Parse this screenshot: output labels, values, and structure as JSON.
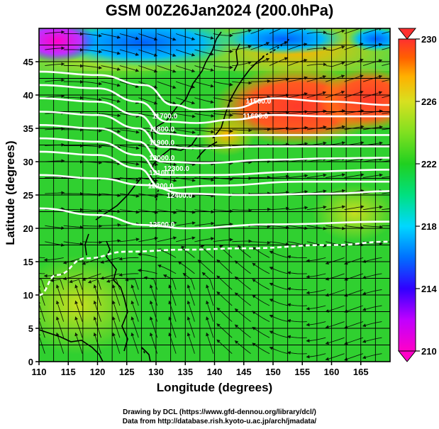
{
  "title": "GSM 00Z26Jan2024 (200.0hPa)",
  "xlabel": "Longitude (degrees)",
  "ylabel": "Latitude  (degrees)",
  "credits": [
    "Drawing by DCL (https://www.gfd-dennou.org/library/dcl/)",
    "Data from http://database.rish.kyoto-u.ac.jp/arch/jmadata/"
  ],
  "map": {
    "lon_range": [
      110,
      170
    ],
    "lat_range": [
      0,
      50
    ],
    "lon_ticks": [
      110,
      115,
      120,
      125,
      130,
      135,
      140,
      145,
      150,
      155,
      160,
      165
    ],
    "lat_ticks": [
      0,
      5,
      10,
      15,
      20,
      25,
      30,
      35,
      40,
      45
    ],
    "grid_step_deg": 2.5,
    "grid": true
  },
  "colorbar": {
    "ticks": [
      210,
      214,
      218,
      222,
      226,
      230
    ],
    "range": [
      210,
      230
    ],
    "colors": [
      "#ff00c8",
      "#c000ff",
      "#3000ff",
      "#0070ff",
      "#00d8ff",
      "#00e080",
      "#20d020",
      "#80e020",
      "#d8e020",
      "#ffb000",
      "#ff6000",
      "#ff3030"
    ]
  },
  "contour_labels": [
    {
      "text": "11500.0",
      "lon": 147.5,
      "lat": 38.7
    },
    {
      "text": "11600.0",
      "lon": 147.0,
      "lat": 36.5
    },
    {
      "text": "11700.0",
      "lon": 131.5,
      "lat": 36.5
    },
    {
      "text": "11800.0",
      "lon": 131.0,
      "lat": 34.5
    },
    {
      "text": "11900.0",
      "lon": 131.0,
      "lat": 32.5
    },
    {
      "text": "12000.0",
      "lon": 131.0,
      "lat": 30.2
    },
    {
      "text": "12100.0",
      "lon": 131.0,
      "lat": 28.0
    },
    {
      "text": "12200.0",
      "lon": 130.8,
      "lat": 26.0
    },
    {
      "text": "12300.0",
      "lon": 133.5,
      "lat": 28.6
    },
    {
      "text": "12400.0",
      "lon": 134.0,
      "lat": 24.6
    },
    {
      "text": "12500.0",
      "lon": 131.0,
      "lat": 20.2
    }
  ]
}
